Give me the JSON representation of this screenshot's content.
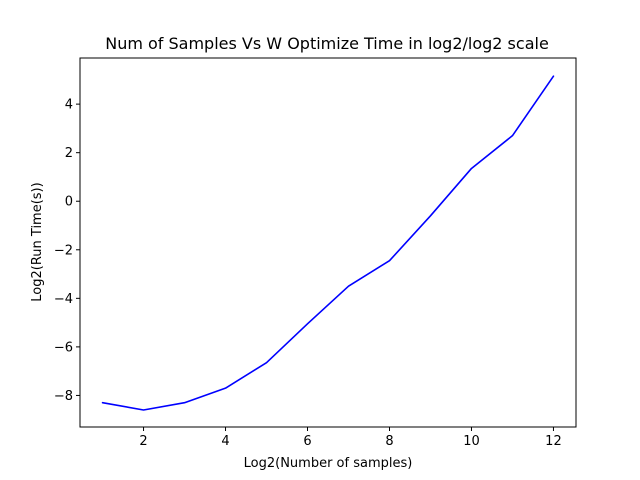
{
  "chart_data": {
    "type": "line",
    "title": "Num of Samples Vs W Optimize Time in log2/log2 scale",
    "xlabel": "Log2(Number of samples)",
    "ylabel": "Log2(Run Time(s))",
    "xlim": [
      0.45,
      12.55
    ],
    "ylim": [
      -9.3,
      5.9
    ],
    "xticks": [
      2,
      4,
      6,
      8,
      10,
      12
    ],
    "yticks": [
      -8,
      -6,
      -4,
      -2,
      0,
      2,
      4
    ],
    "grid": false,
    "series": [
      {
        "color": "#0000ff",
        "x": [
          1,
          2,
          3,
          4,
          5,
          6,
          7,
          8,
          9,
          10,
          11,
          12
        ],
        "y": [
          -8.3,
          -8.6,
          -8.3,
          -7.7,
          -6.65,
          -5.05,
          -3.5,
          -2.45,
          -0.6,
          1.35,
          2.7,
          5.15
        ]
      }
    ]
  }
}
